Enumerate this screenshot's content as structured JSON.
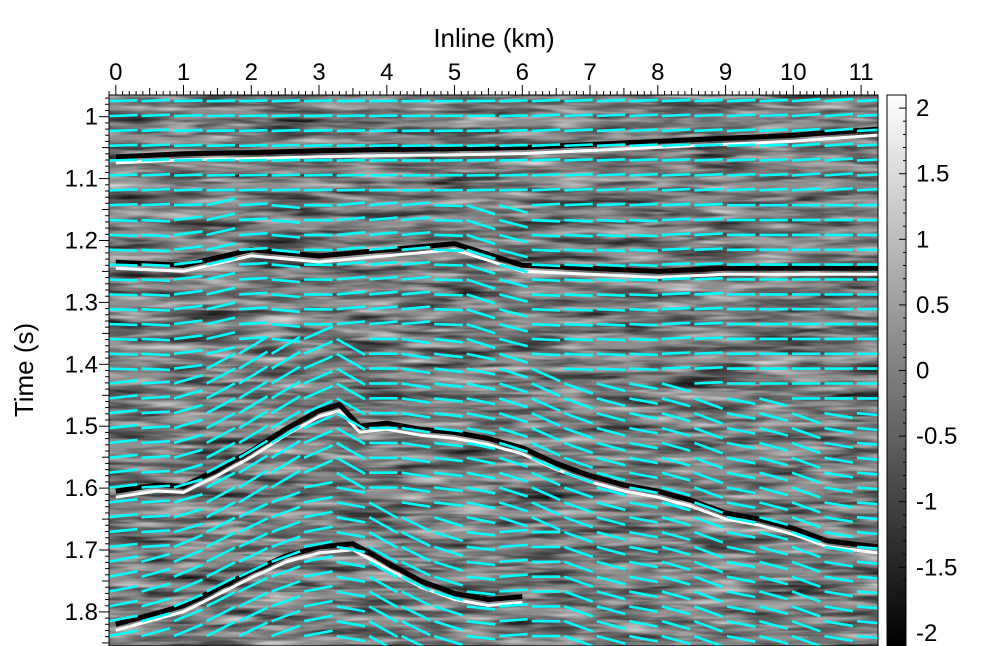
{
  "chart_data": {
    "type": "heatmap",
    "title": "",
    "xlabel": "Inline (km)",
    "ylabel": "Time (s)",
    "xlim": [
      -0.1,
      11.25
    ],
    "ylim": [
      1.855,
      0.965
    ],
    "x_ticks": [
      0,
      1,
      2,
      3,
      4,
      5,
      6,
      7,
      8,
      9,
      10,
      11
    ],
    "x_tick_labels": [
      "0",
      "1",
      "2",
      "3",
      "4",
      "5",
      "6",
      "7",
      "8",
      "9",
      "10",
      "11"
    ],
    "y_ticks": [
      1.0,
      1.1,
      1.2,
      1.3,
      1.4,
      1.5,
      1.6,
      1.7,
      1.8
    ],
    "y_tick_labels": [
      "1",
      "1.1",
      "1.2",
      "1.3",
      "1.4",
      "1.5",
      "1.6",
      "1.7",
      "1.8"
    ],
    "colorbar": {
      "range": [
        -2.1,
        2.1
      ],
      "ticks": [
        2,
        1.5,
        1,
        0.5,
        0,
        -0.5,
        -1,
        -1.5,
        -2
      ],
      "tick_labels": [
        "2",
        "1.5",
        "1",
        "0.5",
        "0",
        "-0.5",
        "-1",
        "-1.5",
        "-2"
      ],
      "colormap": "gray (black low, white high)"
    },
    "overlay": {
      "description": "local slope (dip) indicators",
      "color": "#00ffff",
      "style": "dashed segments"
    },
    "horizons": [
      {
        "name": "",
        "x": [
          0,
          1,
          2,
          3,
          4,
          5,
          6,
          7,
          8,
          9,
          10,
          11.25
        ],
        "y": [
          1.065,
          1.06,
          1.058,
          1.055,
          1.053,
          1.052,
          1.05,
          1.045,
          1.04,
          1.035,
          1.03,
          1.02
        ]
      },
      {
        "name": "",
        "x": [
          0,
          1,
          2,
          3,
          4,
          5,
          6,
          7,
          8,
          9,
          10,
          11.25
        ],
        "y": [
          1.235,
          1.24,
          1.215,
          1.225,
          1.215,
          1.205,
          1.24,
          1.245,
          1.25,
          1.245,
          1.245,
          1.245
        ]
      },
      {
        "name": "",
        "x": [
          0,
          0.6,
          1,
          1.5,
          2,
          2.5,
          3,
          3.3,
          3.6,
          4,
          4.5,
          5,
          5.5,
          6,
          6.5,
          7,
          7.5,
          8,
          8.5,
          9,
          9.5,
          10,
          10.5,
          11.25
        ],
        "y": [
          1.605,
          1.595,
          1.597,
          1.57,
          1.54,
          1.505,
          1.475,
          1.465,
          1.5,
          1.495,
          1.505,
          1.51,
          1.52,
          1.535,
          1.56,
          1.58,
          1.595,
          1.605,
          1.62,
          1.64,
          1.65,
          1.665,
          1.685,
          1.695
        ]
      },
      {
        "name": "",
        "x": [
          0,
          1,
          2,
          2.5,
          3,
          3.5,
          4,
          4.5,
          5,
          5.5,
          6
        ],
        "y": [
          1.82,
          1.79,
          1.735,
          1.71,
          1.695,
          1.69,
          1.72,
          1.75,
          1.77,
          1.78,
          1.775
        ]
      }
    ],
    "grid": false,
    "legend": "colorbar-right"
  }
}
